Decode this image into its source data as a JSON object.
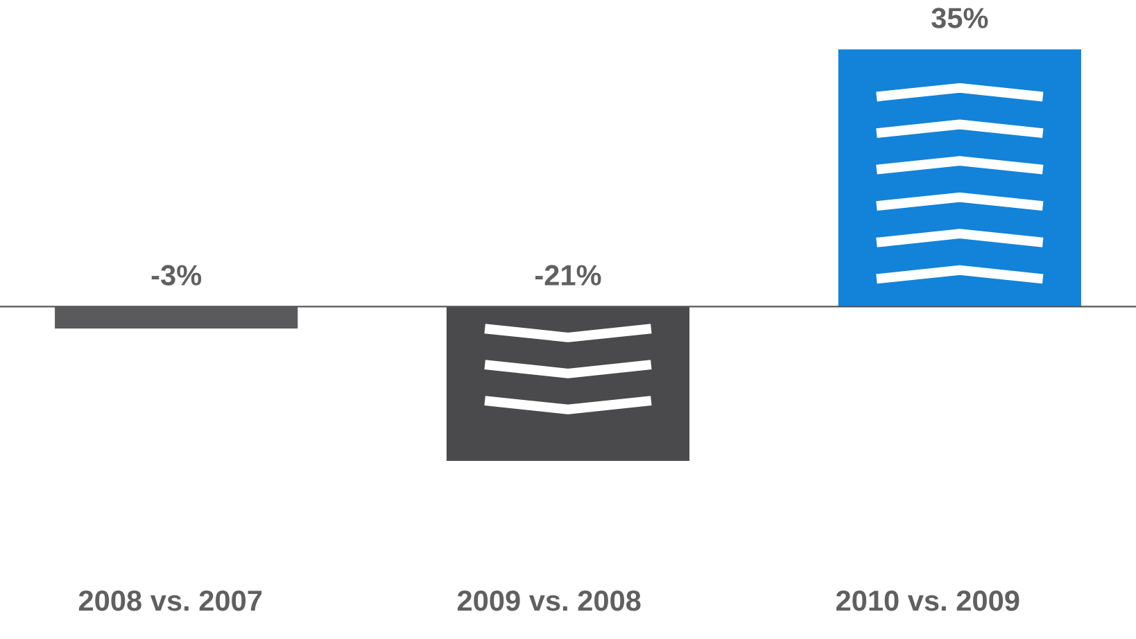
{
  "chart_data": {
    "type": "bar",
    "categories": [
      "2008 vs. 2007",
      "2009 vs. 2008",
      "2010 vs. 2009"
    ],
    "values": [
      -3,
      -21,
      35
    ],
    "value_labels": [
      "-3%",
      "-21%",
      "35%"
    ],
    "colors": [
      "#5a5a5c",
      "#4a4a4c",
      "#1283d8"
    ]
  }
}
